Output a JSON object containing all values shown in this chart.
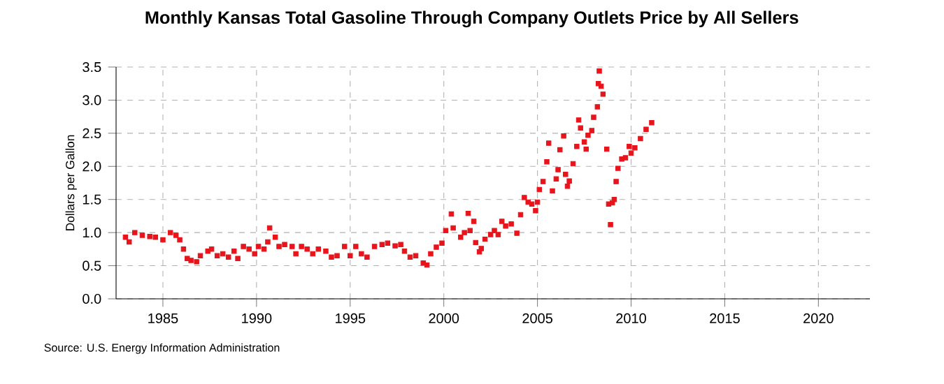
{
  "chart_data": {
    "type": "scatter",
    "title": "Monthly Kansas Total Gasoline Through Company Outlets Price by All Sellers",
    "ylabel": "Dollars per Gallon",
    "annotations": [
      "Source: U.S. Energy Information Administration"
    ],
    "x": [
      1983.0,
      1983.2,
      1983.5,
      1983.9,
      1984.3,
      1984.6,
      1985.0,
      1985.4,
      1985.7,
      1985.9,
      1986.1,
      1986.3,
      1986.5,
      1986.8,
      1987.0,
      1987.4,
      1987.6,
      1987.9,
      1988.2,
      1988.5,
      1988.8,
      1989.0,
      1989.3,
      1989.6,
      1989.9,
      1990.1,
      1990.4,
      1990.6,
      1990.7,
      1991.0,
      1991.2,
      1991.5,
      1991.9,
      1992.1,
      1992.4,
      1992.7,
      1993.0,
      1993.3,
      1993.7,
      1994.0,
      1994.3,
      1994.7,
      1995.0,
      1995.3,
      1995.6,
      1995.9,
      1996.3,
      1996.7,
      1997.0,
      1997.4,
      1997.7,
      1997.9,
      1998.2,
      1998.5,
      1998.9,
      1999.1,
      1999.3,
      1999.6,
      1999.9,
      2000.1,
      2000.4,
      2000.5,
      2000.9,
      2001.1,
      2001.3,
      2001.4,
      2001.6,
      2001.7,
      2001.9,
      2002.0,
      2002.2,
      2002.5,
      2002.7,
      2002.9,
      2003.1,
      2003.3,
      2003.6,
      2003.9,
      2004.1,
      2004.3,
      2004.5,
      2004.7,
      2004.9,
      2005.0,
      2005.1,
      2005.3,
      2005.5,
      2005.6,
      2005.8,
      2006.0,
      2006.1,
      2006.2,
      2006.4,
      2006.5,
      2006.6,
      2006.7,
      2006.9,
      2007.1,
      2007.2,
      2007.3,
      2007.5,
      2007.6,
      2007.7,
      2007.9,
      2008.0,
      2008.2,
      2008.25,
      2008.3,
      2008.4,
      2008.5,
      2008.7,
      2008.8,
      2008.9,
      2009.0,
      2009.1,
      2009.2,
      2009.3,
      2009.5,
      2009.7,
      2009.9,
      2010.0,
      2010.2,
      2010.5,
      2010.8,
      2011.1
    ],
    "values": [
      0.93,
      0.86,
      1.0,
      0.96,
      0.94,
      0.93,
      0.89,
      1.0,
      0.96,
      0.89,
      0.75,
      0.61,
      0.58,
      0.56,
      0.65,
      0.72,
      0.75,
      0.65,
      0.68,
      0.63,
      0.72,
      0.61,
      0.79,
      0.75,
      0.68,
      0.79,
      0.75,
      0.86,
      1.07,
      0.93,
      0.79,
      0.82,
      0.79,
      0.68,
      0.79,
      0.75,
      0.68,
      0.75,
      0.72,
      0.63,
      0.65,
      0.79,
      0.65,
      0.79,
      0.68,
      0.63,
      0.79,
      0.82,
      0.84,
      0.8,
      0.82,
      0.72,
      0.63,
      0.65,
      0.54,
      0.51,
      0.68,
      0.78,
      0.84,
      1.03,
      1.28,
      1.07,
      0.93,
      1.0,
      1.29,
      1.03,
      1.17,
      0.85,
      0.71,
      0.76,
      0.9,
      0.97,
      1.03,
      0.97,
      1.17,
      1.1,
      1.13,
      0.99,
      1.27,
      1.53,
      1.46,
      1.43,
      1.33,
      1.46,
      1.65,
      1.77,
      2.07,
      2.35,
      1.63,
      1.81,
      1.95,
      2.25,
      2.46,
      1.88,
      1.7,
      1.78,
      2.04,
      2.3,
      2.7,
      2.58,
      2.37,
      2.26,
      2.47,
      2.54,
      2.74,
      2.9,
      3.25,
      3.44,
      3.21,
      3.09,
      2.26,
      1.43,
      1.12,
      1.45,
      1.5,
      1.77,
      1.97,
      2.11,
      2.13,
      2.3,
      2.2,
      2.28,
      2.42,
      2.56,
      2.66
    ],
    "color": "#e8141c",
    "marker": "square",
    "grid": true,
    "xlim": [
      1982.5,
      2022.75
    ],
    "xticks": [
      1985,
      1990,
      1995,
      2000,
      2005,
      2010,
      2015,
      2020
    ],
    "ylim": [
      0,
      3.5
    ],
    "yticks": [
      {
        "value": 0,
        "label": "0.0"
      },
      0.5,
      {
        "value": 1,
        "label": "1.0"
      },
      1.5,
      {
        "value": 2,
        "label": "2.0"
      },
      2.5,
      {
        "value": 3,
        "label": "3.0"
      },
      3.5
    ]
  }
}
